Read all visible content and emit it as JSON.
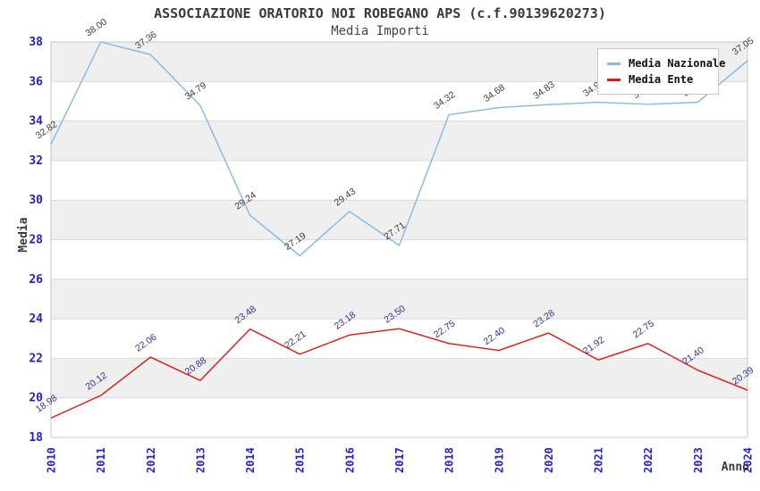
{
  "header": {
    "title": "ASSOCIAZIONE ORATORIO NOI ROBEGANO APS (c.f.90139620273)",
    "subtitle": "Media Importi"
  },
  "chart_data": {
    "type": "line",
    "x": [
      "2010",
      "2011",
      "2012",
      "2013",
      "2014",
      "2015",
      "2016",
      "2017",
      "2018",
      "2019",
      "2020",
      "2021",
      "2022",
      "2023",
      "2024"
    ],
    "xlabel": "Anno",
    "ylabel": "Media",
    "ylim": [
      18,
      38
    ],
    "ytick_step": 2,
    "grid": "horizontal-bands-alternating",
    "legend_position": "top-right",
    "series": [
      {
        "name": "Media Nazionale",
        "color": "#85b7e8",
        "label_color": "#3c3c3c",
        "values": [
          32.82,
          38.0,
          37.36,
          34.79,
          29.24,
          27.19,
          29.43,
          27.71,
          34.32,
          34.68,
          34.83,
          34.95,
          34.85,
          34.95,
          37.05
        ]
      },
      {
        "name": "Media Ente",
        "color": "#e81414",
        "label_color": "#31319c",
        "values": [
          18.98,
          20.12,
          22.06,
          20.88,
          23.48,
          22.21,
          23.18,
          23.5,
          22.75,
          22.4,
          23.28,
          21.92,
          22.75,
          21.4,
          20.39
        ]
      }
    ],
    "colors": {
      "tick_label": "#2222cc",
      "band_gray": "#efefef",
      "band_white": "#ffffff",
      "gridline": "#d9d9d9",
      "plot_border": "#c6c6c6",
      "axis_title": "#3a3a3a"
    }
  }
}
